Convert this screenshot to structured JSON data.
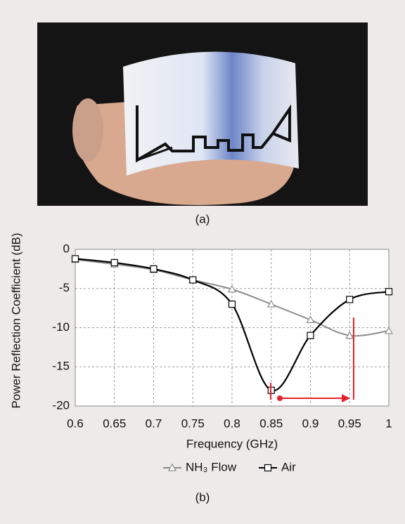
{
  "figure": {
    "panel_a": "(a)",
    "panel_b": "(b)"
  },
  "chart_data": {
    "type": "line",
    "x_label": "Frequency (GHz)",
    "y_label": "Power Reflection Coefficient (dB)",
    "x": [
      0.6,
      0.65,
      0.7,
      0.75,
      0.8,
      0.85,
      0.9,
      0.95,
      1
    ],
    "series": [
      {
        "name": "NH₃ Flow",
        "color": "#8c8c8c",
        "marker": "triangle",
        "values": [
          -1.3,
          -1.9,
          -2.6,
          -3.9,
          -5.1,
          -7,
          -9,
          -11,
          -10.4
        ]
      },
      {
        "name": "Air",
        "color": "#000000",
        "marker": "square",
        "values": [
          -1.2,
          -1.7,
          -2.5,
          -3.9,
          -7,
          -18,
          -11,
          -6.4,
          -5.4
        ]
      }
    ],
    "xlim": [
      0.6,
      1
    ],
    "xticks": [
      0.6,
      0.65,
      0.7,
      0.75,
      0.8,
      0.85,
      0.9,
      0.95,
      1
    ],
    "ylim": [
      -20,
      0
    ],
    "yticks": [
      0,
      -5,
      -10,
      -15,
      -20
    ],
    "grid": true,
    "legend": "bottom"
  }
}
